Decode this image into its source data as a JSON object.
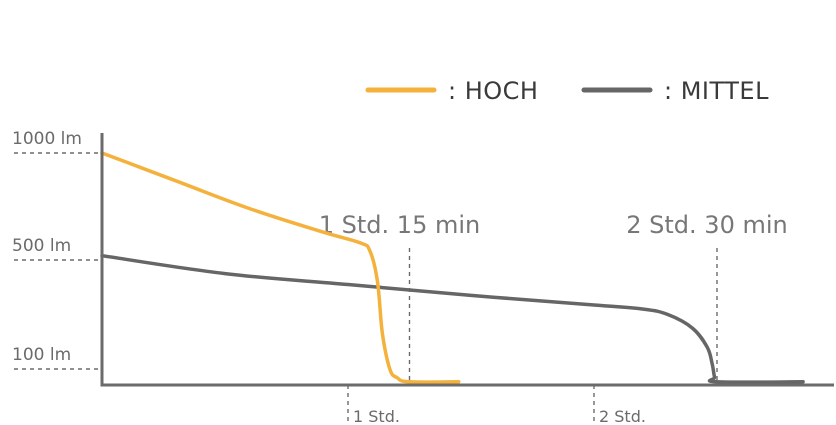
{
  "chart_data": {
    "type": "line",
    "legend_position": "top-right",
    "grid": false,
    "xlim_hours": [
      0,
      2.85
    ],
    "ylim_lm": [
      0,
      1000
    ],
    "y_ticks": [
      {
        "value": 1000,
        "label": "1000 lm"
      },
      {
        "value": 500,
        "label": "500 lm"
      },
      {
        "value": 100,
        "label": "100 lm"
      }
    ],
    "x_ticks": [
      {
        "value": 1,
        "label": "1 Std."
      },
      {
        "value": 2,
        "label": "2 Std."
      }
    ],
    "annotations": [
      {
        "x": 1.25,
        "label": "1 Std. 15 min"
      },
      {
        "x": 2.5,
        "label": "2 Std. 30 min"
      }
    ],
    "series": [
      {
        "name": ": HOCH",
        "color": "#f4b13c",
        "points": [
          [
            0,
            1000
          ],
          [
            0.3,
            870
          ],
          [
            0.6,
            740
          ],
          [
            0.9,
            630
          ],
          [
            1.05,
            580
          ],
          [
            1.09,
            540
          ],
          [
            1.12,
            420
          ],
          [
            1.14,
            230
          ],
          [
            1.17,
            100
          ],
          [
            1.2,
            45
          ],
          [
            1.25,
            20
          ],
          [
            1.45,
            20
          ]
        ]
      },
      {
        "name": ": MITTEL",
        "color": "#666666",
        "points": [
          [
            0,
            520
          ],
          [
            0.5,
            450
          ],
          [
            1.0,
            410
          ],
          [
            1.5,
            370
          ],
          [
            2.0,
            335
          ],
          [
            2.2,
            320
          ],
          [
            2.3,
            300
          ],
          [
            2.4,
            250
          ],
          [
            2.46,
            180
          ],
          [
            2.48,
            120
          ],
          [
            2.49,
            50
          ],
          [
            2.5,
            20
          ],
          [
            2.85,
            20
          ]
        ]
      }
    ]
  }
}
